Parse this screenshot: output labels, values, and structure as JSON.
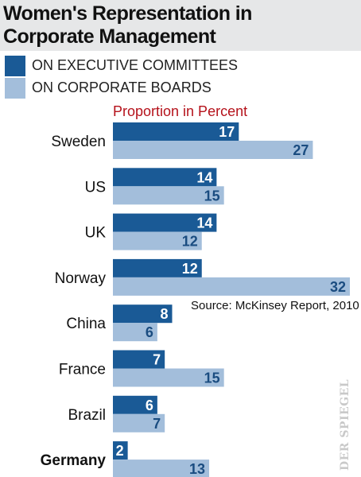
{
  "header": {
    "title_line1": "Women's Representation in",
    "title_line2": "Corporate Management"
  },
  "legend": [
    {
      "label": "ON EXECUTIVE COMMITTEES",
      "color": "#1a5a96"
    },
    {
      "label": "ON CORPORATE BOARDS",
      "color": "#a3bedb"
    }
  ],
  "subtitle": "Proportion in Percent",
  "source": "Source: McKinsey Report, 2010",
  "watermark": "DER SPIEGEL",
  "chart_data": {
    "type": "bar",
    "orientation": "horizontal",
    "categories": [
      "Sweden",
      "US",
      "UK",
      "Norway",
      "China",
      "France",
      "Brazil",
      "Germany"
    ],
    "highlighted_category": "Germany",
    "series": [
      {
        "name": "ON EXECUTIVE COMMITTEES",
        "color": "#1a5a96",
        "values": [
          17,
          14,
          14,
          12,
          8,
          7,
          6,
          2
        ]
      },
      {
        "name": "ON CORPORATE BOARDS",
        "color": "#a3bedb",
        "values": [
          27,
          15,
          12,
          32,
          6,
          15,
          7,
          13
        ]
      }
    ],
    "title": "Women's Representation in Corporate Management",
    "xlabel": "Proportion in Percent",
    "ylabel": "",
    "xlim": [
      0,
      32
    ],
    "grid": false,
    "legend_position": "top-left"
  }
}
